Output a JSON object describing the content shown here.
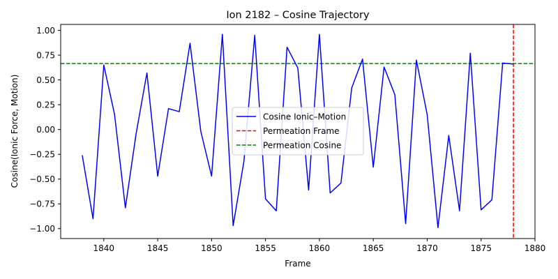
{
  "chart_data": {
    "type": "line",
    "title": "Ion 2182 – Cosine Trajectory",
    "xlabel": "Frame",
    "ylabel": "Cosine(Ionic Force, Motion)",
    "xlim": [
      1836,
      1880
    ],
    "ylim": [
      -1.1,
      1.06
    ],
    "xticks": [
      1840,
      1845,
      1850,
      1855,
      1860,
      1865,
      1870,
      1875,
      1880
    ],
    "yticks": [
      -1.0,
      -0.75,
      -0.5,
      -0.25,
      0.0,
      0.25,
      0.5,
      0.75,
      1.0
    ],
    "xtick_labels": [
      "1840",
      "1845",
      "1850",
      "1855",
      "1860",
      "1865",
      "1870",
      "1875",
      "1880"
    ],
    "ytick_labels": [
      "−1.00",
      "−0.75",
      "−0.50",
      "−0.25",
      "0.00",
      "0.25",
      "0.50",
      "0.75",
      "1.00"
    ],
    "grid": false,
    "legend_position": "center",
    "series": [
      {
        "name": "Cosine Ionic–Motion",
        "color": "#0000ff",
        "style": "solid",
        "x": [
          1838,
          1839,
          1840,
          1841,
          1842,
          1843,
          1844,
          1845,
          1846,
          1847,
          1848,
          1849,
          1850,
          1851,
          1852,
          1853,
          1854,
          1855,
          1856,
          1857,
          1858,
          1859,
          1860,
          1861,
          1862,
          1863,
          1864,
          1865,
          1866,
          1867,
          1868,
          1869,
          1870,
          1871,
          1872,
          1873,
          1874,
          1875,
          1876,
          1877,
          1878
        ],
        "y": [
          -0.26,
          -0.9,
          0.65,
          0.15,
          -0.79,
          -0.04,
          0.57,
          -0.47,
          0.21,
          0.18,
          0.87,
          -0.02,
          -0.47,
          0.96,
          -0.97,
          -0.32,
          0.95,
          -0.7,
          -0.82,
          0.83,
          0.62,
          -0.61,
          0.96,
          -0.64,
          -0.54,
          0.42,
          0.71,
          -0.38,
          0.63,
          0.35,
          -0.95,
          0.7,
          0.15,
          -0.99,
          -0.06,
          -0.82,
          0.77,
          -0.81,
          -0.71,
          0.67,
          0.66
        ]
      }
    ],
    "reference_lines": [
      {
        "name": "Permeation Frame",
        "orientation": "vertical",
        "value": 1878,
        "color": "#ff0000",
        "style": "dashed"
      },
      {
        "name": "Permeation Cosine",
        "orientation": "horizontal",
        "value": 0.665,
        "color": "#008000",
        "style": "dashed"
      }
    ]
  }
}
